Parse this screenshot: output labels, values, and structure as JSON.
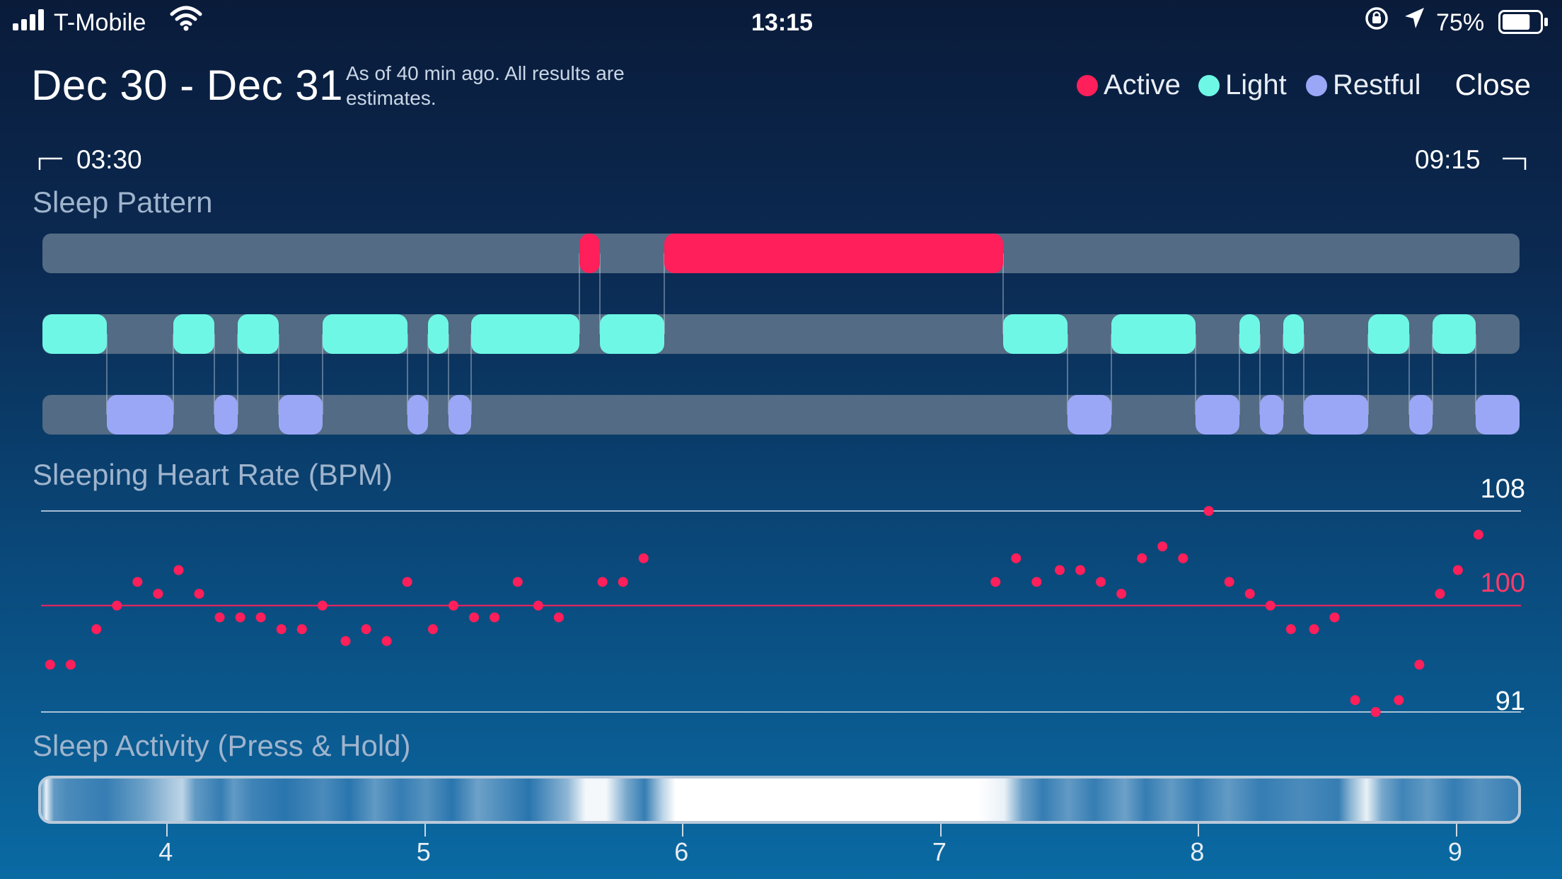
{
  "status_bar": {
    "carrier": "T-Mobile",
    "time": "13:15",
    "battery": "75%",
    "battery_level": 0.75
  },
  "header": {
    "title": "Dec 30 - Dec 31",
    "subtitle": "As of 40 min ago. All results are estimates.",
    "close_label": "Close"
  },
  "legend": [
    {
      "label": "Active",
      "color": "#ff1f5a"
    },
    {
      "label": "Light",
      "color": "#6ff7e6"
    },
    {
      "label": "Restful",
      "color": "#9aa7f7"
    }
  ],
  "range": {
    "start": "03:30",
    "end": "09:15"
  },
  "sections": {
    "sleep_pattern": "Sleep Pattern",
    "heart_rate": "Sleeping Heart Rate (BPM)",
    "activity": "Sleep Activity (Press & Hold)"
  },
  "sleep_pattern": {
    "start_hour": 3.5,
    "end_hour": 9.25,
    "active": [
      [
        5.59,
        5.67
      ],
      [
        5.92,
        7.24
      ]
    ],
    "light": [
      [
        3.5,
        3.75
      ],
      [
        4.01,
        4.17
      ],
      [
        4.26,
        4.42
      ],
      [
        4.59,
        4.92
      ],
      [
        5.0,
        5.08
      ],
      [
        5.17,
        5.59
      ],
      [
        5.67,
        5.92
      ],
      [
        7.24,
        7.49
      ],
      [
        7.66,
        7.99
      ],
      [
        8.16,
        8.24
      ],
      [
        8.33,
        8.41
      ],
      [
        8.66,
        8.82
      ],
      [
        8.91,
        9.08
      ]
    ],
    "restful": [
      [
        3.75,
        4.01
      ],
      [
        4.17,
        4.26
      ],
      [
        4.42,
        4.59
      ],
      [
        4.92,
        5.0
      ],
      [
        5.08,
        5.17
      ],
      [
        7.49,
        7.66
      ],
      [
        7.99,
        8.16
      ],
      [
        8.24,
        8.33
      ],
      [
        8.41,
        8.66
      ],
      [
        8.82,
        8.91
      ],
      [
        9.08,
        9.25
      ]
    ]
  },
  "heart_rate": {
    "max_label": "108",
    "avg_label": "100",
    "min_label": "91",
    "max": 108,
    "avg": 100,
    "min": 91,
    "points": [
      [
        3.53,
        95
      ],
      [
        3.61,
        95
      ],
      [
        3.71,
        98
      ],
      [
        3.79,
        100
      ],
      [
        3.87,
        102
      ],
      [
        3.95,
        101
      ],
      [
        4.03,
        103
      ],
      [
        4.11,
        101
      ],
      [
        4.19,
        99
      ],
      [
        4.27,
        99
      ],
      [
        4.35,
        99
      ],
      [
        4.43,
        98
      ],
      [
        4.51,
        98
      ],
      [
        4.59,
        100
      ],
      [
        4.68,
        97
      ],
      [
        4.76,
        98
      ],
      [
        4.84,
        97
      ],
      [
        4.92,
        102
      ],
      [
        5.02,
        98
      ],
      [
        5.1,
        100
      ],
      [
        5.18,
        99
      ],
      [
        5.26,
        99
      ],
      [
        5.35,
        102
      ],
      [
        5.43,
        100
      ],
      [
        5.51,
        99
      ],
      [
        5.68,
        102
      ],
      [
        5.76,
        102
      ],
      [
        5.84,
        104
      ],
      [
        7.21,
        102
      ],
      [
        7.29,
        104
      ],
      [
        7.37,
        102
      ],
      [
        7.46,
        103
      ],
      [
        7.54,
        103
      ],
      [
        7.62,
        102
      ],
      [
        7.7,
        101
      ],
      [
        7.78,
        104
      ],
      [
        7.86,
        105
      ],
      [
        7.94,
        104
      ],
      [
        8.04,
        108
      ],
      [
        8.12,
        102
      ],
      [
        8.2,
        101
      ],
      [
        8.28,
        100
      ],
      [
        8.36,
        98
      ],
      [
        8.45,
        98
      ],
      [
        8.53,
        99
      ],
      [
        8.61,
        92
      ],
      [
        8.69,
        91
      ],
      [
        8.78,
        92
      ],
      [
        8.86,
        95
      ],
      [
        8.94,
        101
      ],
      [
        9.01,
        103
      ],
      [
        9.09,
        106
      ]
    ]
  },
  "activity": {
    "ticks": [
      "4",
      "5",
      "6",
      "7",
      "8",
      "9"
    ],
    "tick_hours": [
      4,
      5,
      6,
      7,
      8,
      9
    ],
    "intensity": [
      [
        3.5,
        0.3
      ],
      [
        3.52,
        0.9
      ],
      [
        3.55,
        0.3
      ],
      [
        3.6,
        0.2
      ],
      [
        3.75,
        0.1
      ],
      [
        3.9,
        0.35
      ],
      [
        4.0,
        0.6
      ],
      [
        4.05,
        0.7
      ],
      [
        4.1,
        0.3
      ],
      [
        4.2,
        0.1
      ],
      [
        4.25,
        0.3
      ],
      [
        4.32,
        0.15
      ],
      [
        4.45,
        0.05
      ],
      [
        4.6,
        0.2
      ],
      [
        4.7,
        0.05
      ],
      [
        4.8,
        0.3
      ],
      [
        4.9,
        0.1
      ],
      [
        5.0,
        0.25
      ],
      [
        5.1,
        0.05
      ],
      [
        5.2,
        0.35
      ],
      [
        5.3,
        0.2
      ],
      [
        5.4,
        0.05
      ],
      [
        5.55,
        0.5
      ],
      [
        5.62,
        0.95
      ],
      [
        5.7,
        0.95
      ],
      [
        5.78,
        0.4
      ],
      [
        5.85,
        0.1
      ],
      [
        5.92,
        0.7
      ],
      [
        5.97,
        1.0
      ],
      [
        7.15,
        1.0
      ],
      [
        7.25,
        0.9
      ],
      [
        7.32,
        0.35
      ],
      [
        7.4,
        0.1
      ],
      [
        7.5,
        0.3
      ],
      [
        7.6,
        0.1
      ],
      [
        7.72,
        0.35
      ],
      [
        7.8,
        0.1
      ],
      [
        7.9,
        0.3
      ],
      [
        8.0,
        0.1
      ],
      [
        8.12,
        0.3
      ],
      [
        8.25,
        0.1
      ],
      [
        8.4,
        0.2
      ],
      [
        8.55,
        0.1
      ],
      [
        8.6,
        0.5
      ],
      [
        8.66,
        0.9
      ],
      [
        8.72,
        0.4
      ],
      [
        8.8,
        0.15
      ],
      [
        8.9,
        0.3
      ],
      [
        9.0,
        0.1
      ],
      [
        9.1,
        0.25
      ],
      [
        9.25,
        0.1
      ]
    ]
  }
}
